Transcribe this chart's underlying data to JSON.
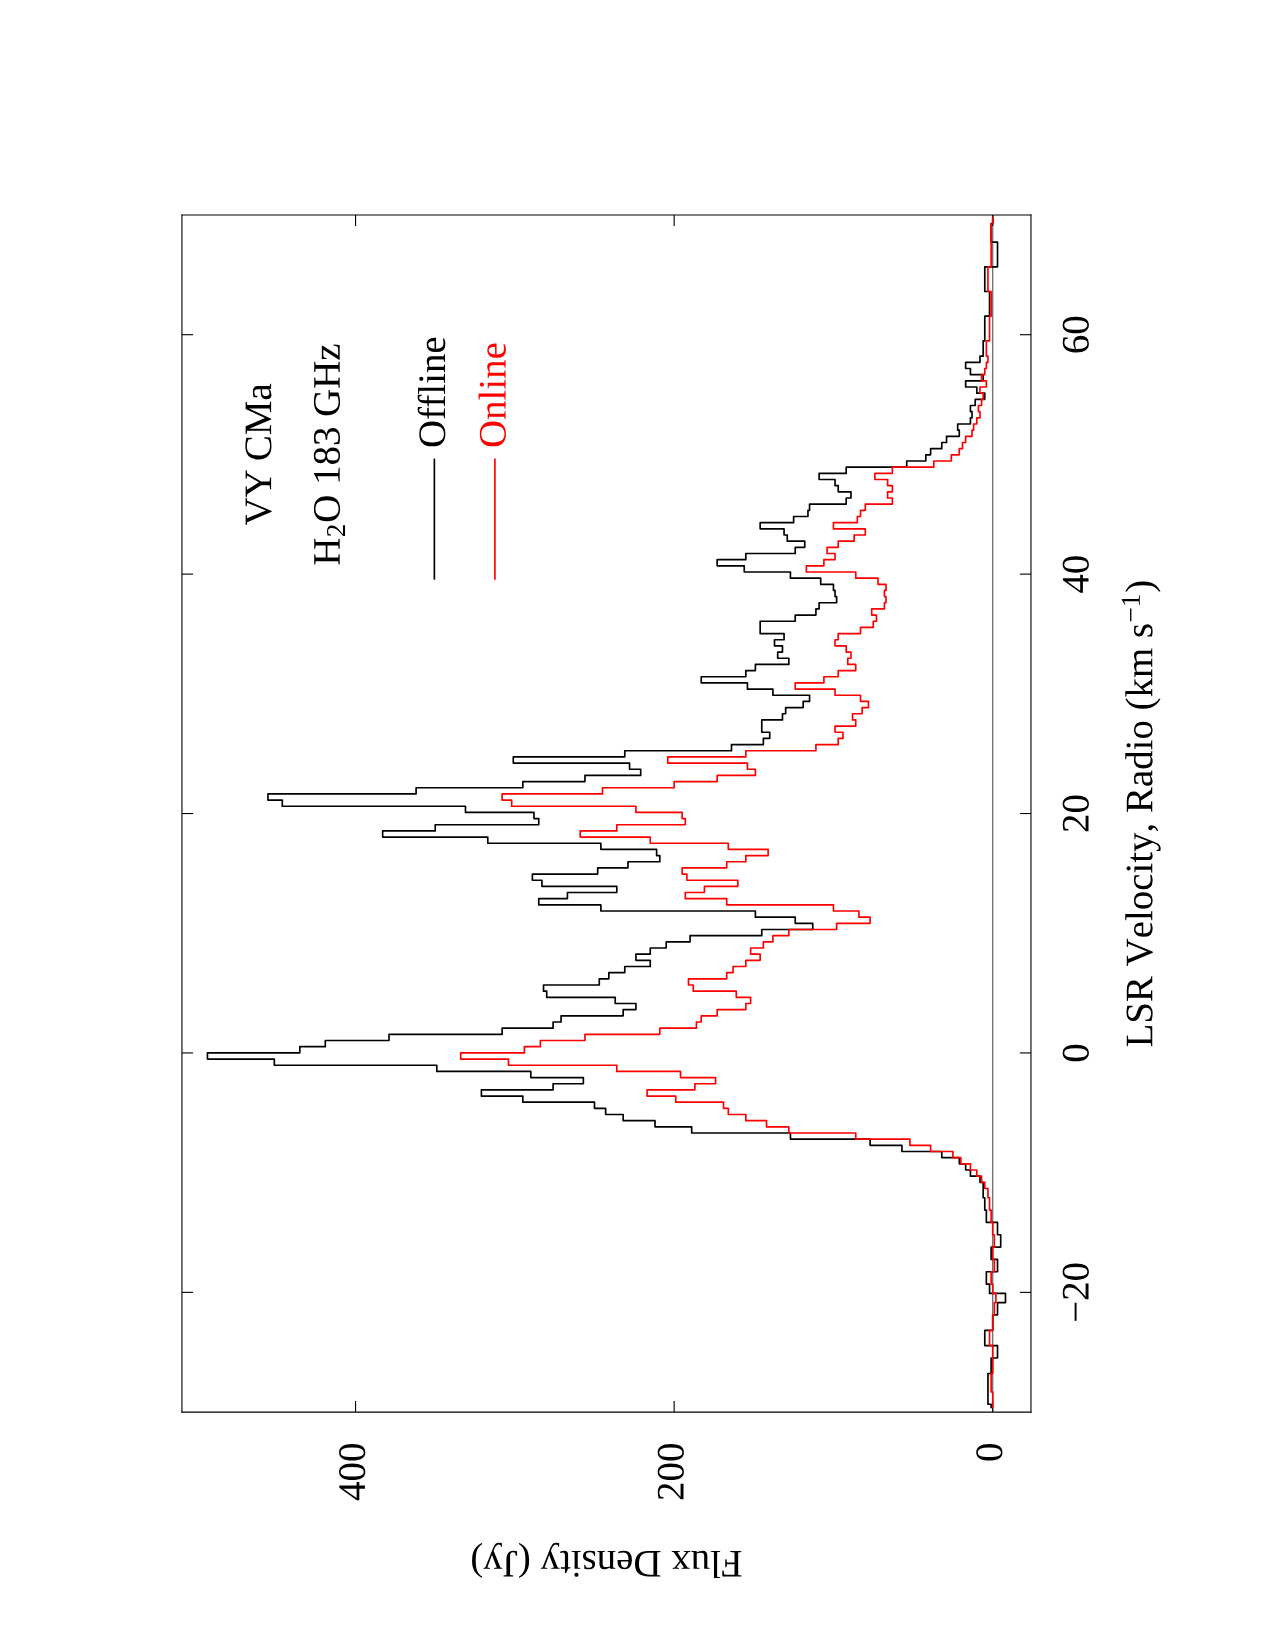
{
  "chart_data": {
    "type": "step",
    "title": "VY CMa",
    "subtitle": "H$_{2}$O 183 GHz",
    "orientation": "horizontal",
    "xlabel": "Flux Density (Jy)",
    "ylabel": "LSR Velocity, Radio (km s$^{−1}$)",
    "xlim": [
      509,
      -24
    ],
    "xticks": [
      0,
      200,
      400
    ],
    "ylim": [
      -30,
      70
    ],
    "yticks": [
      {
        "value": -20,
        "label": "−20"
      },
      0,
      20,
      40,
      60
    ],
    "legend": "top left",
    "ref_lines": [
      {
        "axis": "x",
        "value": 0,
        "color": "#555555"
      }
    ],
    "x": [
      -29.61,
      -29.09,
      -27.55,
      -26.0,
      -24.97,
      -23.94,
      -22.4,
      -21.37,
      -20.34,
      -19.82,
      -18.79,
      -17.76,
      -16.73,
      -15.7,
      -14.67,
      -13.64,
      -12.61,
      -11.58,
      -11.07,
      -10.55,
      -10.04,
      -9.52,
      -9.01,
      -8.49,
      -7.98,
      -7.46,
      -6.95,
      -6.43,
      -5.92,
      -5.4,
      -4.89,
      -4.37,
      -3.86,
      -3.34,
      -2.83,
      -2.31,
      -1.8,
      -1.28,
      -0.77,
      -0.25,
      0.27,
      0.78,
      1.3,
      1.81,
      2.33,
      2.84,
      3.36,
      3.87,
      4.39,
      4.9,
      5.42,
      5.93,
      6.45,
      6.96,
      7.48,
      7.99,
      8.51,
      9.02,
      9.54,
      10.05,
      10.57,
      11.08,
      11.6,
      12.11,
      12.63,
      13.14,
      13.66,
      14.17,
      14.69,
      15.2,
      15.72,
      16.23,
      16.75,
      17.26,
      17.78,
      18.29,
      18.81,
      19.32,
      19.84,
      20.35,
      20.87,
      21.38,
      21.9,
      22.41,
      22.93,
      23.44,
      23.96,
      24.47,
      24.99,
      25.5,
      26.02,
      26.53,
      27.05,
      27.56,
      28.08,
      28.59,
      29.11,
      29.62,
      30.14,
      30.65,
      31.17,
      31.68,
      32.2,
      32.71,
      33.23,
      33.74,
      34.26,
      34.77,
      35.29,
      35.8,
      36.32,
      36.83,
      37.35,
      37.86,
      38.38,
      38.89,
      39.41,
      39.92,
      40.44,
      40.95,
      41.47,
      41.98,
      42.5,
      43.01,
      43.53,
      44.04,
      44.56,
      45.07,
      45.59,
      46.1,
      46.62,
      47.13,
      47.65,
      48.16,
      48.68,
      49.19,
      49.71,
      50.22,
      50.74,
      51.25,
      51.77,
      52.28,
      52.8,
      53.31,
      53.83,
      54.34,
      54.86,
      55.37,
      55.89,
      56.4,
      56.92,
      57.43,
      57.95,
      58.46,
      60.52,
      62.58,
      64.64,
      66.7,
      68.76,
      69.79
    ],
    "series": [
      {
        "name": "Offline",
        "color": "#000000",
        "values": [
          1,
          3,
          3,
          1,
          -3,
          5,
          0,
          -3,
          -8,
          2,
          4,
          -3,
          1,
          -5,
          -3,
          4,
          5,
          6,
          6,
          8,
          14,
          17,
          21,
          32,
          57,
          77,
          127,
          189,
          212,
          232,
          243,
          250,
          295,
          321,
          276,
          257,
          290,
          349,
          451,
          493,
          435,
          419,
          379,
          308,
          276,
          271,
          232,
          224,
          237,
          280,
          282,
          247,
          241,
          231,
          215,
          224,
          215,
          205,
          190,
          145,
          113,
          124,
          149,
          246,
          285,
          267,
          236,
          283,
          289,
          248,
          229,
          209,
          211,
          246,
          317,
          383,
          350,
          285,
          288,
          331,
          446,
          455,
          362,
          295,
          256,
          221,
          228,
          301,
          231,
          164,
          144,
          140,
          145,
          145,
          132,
          130,
          119,
          115,
          138,
          154,
          183,
          155,
          149,
          128,
          135,
          132,
          137,
          131,
          146,
          146,
          124,
          111,
          109,
          98,
          99,
          100,
          108,
          127,
          156,
          173,
          155,
          124,
          118,
          129,
          131,
          146,
          125,
          116,
          115,
          92,
          89,
          97,
          99,
          109,
          92,
          54,
          42,
          39,
          32,
          29,
          21,
          22,
          14,
          13,
          14,
          11,
          5,
          10,
          17,
          6,
          14,
          17,
          8,
          6,
          5,
          2,
          5,
          -3,
          1,
          0
        ]
      },
      {
        "name": "Online",
        "color": "#ff0000",
        "values": [
          0,
          0,
          1,
          0,
          0,
          2,
          0,
          -1,
          -2,
          0,
          1,
          -1,
          0,
          -1,
          0,
          1,
          2,
          3,
          5,
          7,
          10,
          14,
          20,
          25,
          39,
          52,
          86,
          128,
          142,
          155,
          166,
          169,
          199,
          217,
          187,
          174,
          196,
          236,
          304,
          334,
          294,
          284,
          256,
          209,
          186,
          183,
          173,
          155,
          152,
          161,
          188,
          191,
          167,
          163,
          155,
          146,
          152,
          144,
          138,
          128,
          98,
          77,
          84,
          100,
          167,
          193,
          181,
          160,
          192,
          195,
          167,
          155,
          141,
          166,
          215,
          259,
          236,
          193,
          195,
          224,
          302,
          308,
          245,
          200,
          173,
          149,
          154,
          204,
          155,
          111,
          97,
          94,
          99,
          86,
          88,
          82,
          78,
          83,
          99,
          124,
          106,
          97,
          86,
          91,
          89,
          92,
          99,
          97,
          83,
          75,
          73,
          76,
          68,
          67,
          68,
          67,
          72,
          86,
          117,
          106,
          99,
          104,
          97,
          87,
          80,
          100,
          85,
          83,
          80,
          63,
          66,
          63,
          66,
          74,
          63,
          37,
          26,
          21,
          19,
          17,
          13,
          12,
          10,
          8,
          9,
          7,
          6,
          8,
          4,
          7,
          5,
          4,
          3,
          4,
          2,
          1,
          3,
          1,
          1,
          0
        ]
      }
    ]
  }
}
